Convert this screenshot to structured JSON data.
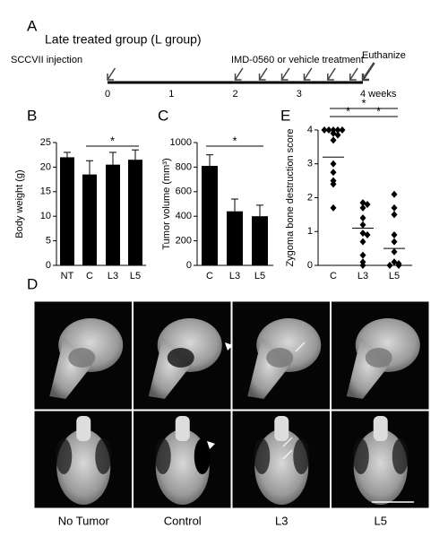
{
  "timeline": {
    "label": "A",
    "title": "Late treated group (L group)",
    "xlim": [
      0,
      4
    ],
    "ticks": [
      0,
      1,
      2,
      3,
      {
        "value": 4,
        "label": "4 weeks"
      }
    ],
    "events": [
      {
        "label": "SCCVII injection",
        "weeks": [
          0
        ]
      },
      {
        "label": "IMD-0560 or vehicle treatment",
        "weeks": [
          2,
          2.38,
          2.73,
          3.08,
          3.45,
          3.8
        ]
      },
      {
        "label": "Euthanize",
        "weeks": [
          4
        ]
      }
    ]
  },
  "chart_data": [
    {
      "type": "bar",
      "label": "B",
      "y_label": "Body weight (g)",
      "categories": [
        "NT",
        "C",
        "L3",
        "L5"
      ],
      "values": [
        22,
        18.5,
        20.5,
        21.5
      ],
      "errors": [
        1,
        2.8,
        2.5,
        2
      ],
      "color": "#000000",
      "ylim": [
        0,
        25
      ],
      "yticks": [
        0,
        5,
        10,
        15,
        20,
        25
      ],
      "significance": [
        {
          "start": 1,
          "end": 3,
          "label": "*"
        }
      ]
    },
    {
      "type": "bar",
      "label": "C",
      "y_label": "Tumor volume (mm³)",
      "categories": [
        "C",
        "L3",
        "L5"
      ],
      "values": [
        810,
        440,
        400
      ],
      "errors": [
        90,
        100,
        90
      ],
      "color": "#000000",
      "ylim": [
        0,
        1000
      ],
      "yticks": [
        0,
        200,
        400,
        600,
        800,
        1000
      ],
      "significance": [
        {
          "start": 0,
          "end": 2,
          "label": "*"
        }
      ]
    },
    {
      "type": "dot",
      "label": "E",
      "y_label": "Zygoma bone destruction score",
      "categories": [
        "C",
        "L3",
        "L5"
      ],
      "points": [
        [
          4,
          4,
          4,
          4,
          4,
          3.9,
          3.85,
          3.7,
          3,
          2.75,
          2.5,
          2.4,
          1.7
        ],
        [
          1.85,
          1.8,
          1.7,
          1.4,
          1.2,
          0.95,
          0.9,
          0.7,
          0.3,
          0.1,
          0
        ],
        [
          2.1,
          1.7,
          1.5,
          0.9,
          0.7,
          0.4,
          0.1,
          0.05,
          0,
          0
        ]
      ],
      "means": [
        3.2,
        1.1,
        0.5
      ],
      "color": "#000000",
      "ylim": [
        0,
        4
      ],
      "yticks": [
        0,
        1,
        2,
        3,
        4
      ],
      "significance": [
        {
          "start": 0,
          "end": 2,
          "label": "*"
        },
        {
          "start": 0,
          "end": 1,
          "label": "*"
        },
        {
          "start": 1,
          "end": 2,
          "label": "*"
        }
      ]
    }
  ],
  "images": {
    "label": "D",
    "columns": [
      "No Tumor",
      "Control",
      "L3",
      "L5"
    ]
  }
}
